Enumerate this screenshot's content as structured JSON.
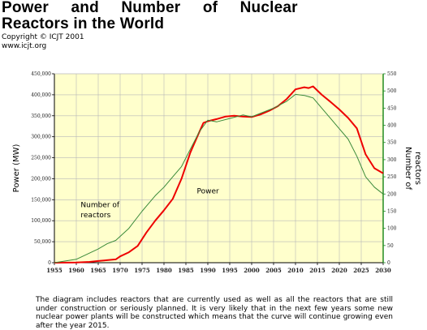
{
  "header": {
    "title_line1": "Power and Number of Nuclear",
    "title_line2": "Reactors in the World",
    "copyright": "Copyright © ICJT 2001",
    "website": "www.icjt.org"
  },
  "caption": "The diagram includes reactors that are currently used as well as all the reactors that are still under construction or seriously planned. It is very likely that in the next few years some new nuclear power plants will be constructed which means that the curve will continue growing even after the year 2015.",
  "colors": {
    "plot_background": "#ffffcc",
    "power_line": "#ee0000",
    "reactors_line": "#3a8a3a",
    "grid": "#b8b8b8",
    "left_axis": "#000000",
    "right_axis": "#228b22"
  },
  "chart_data": {
    "type": "line",
    "title": "Power and Number of Nuclear Reactors in the World",
    "xlabel": "",
    "ylabel": "Power (MW)",
    "y2label": "Number of reactors",
    "xlim": [
      1955,
      2030
    ],
    "ylim": [
      0,
      450000
    ],
    "y2lim": [
      0,
      550
    ],
    "x_ticks": [
      "1955",
      "1960",
      "1965",
      "1970",
      "1975",
      "1980",
      "1985",
      "1990",
      "1995",
      "2000",
      "2005",
      "2010",
      "2015",
      "2020",
      "2025",
      "2030"
    ],
    "y_ticks": [
      "0",
      "50,000",
      "100,000",
      "150,000",
      "200,000",
      "250,000",
      "300,000",
      "350,000",
      "400,000",
      "450,000"
    ],
    "y2_ticks": [
      "0",
      "50",
      "100",
      "150",
      "200",
      "250",
      "300",
      "350",
      "400",
      "450",
      "500",
      "550"
    ],
    "grid": true,
    "annotations": [
      {
        "text": "Power",
        "x": 1987.5,
        "y": 165000
      },
      {
        "text": "Number of",
        "x": 1961,
        "y": 132000
      },
      {
        "text": "reactors",
        "x": 1961,
        "y": 108000
      }
    ],
    "series": [
      {
        "name": "Power",
        "axis": "left",
        "x": [
          1955,
          1960,
          1963,
          1965,
          1967,
          1969,
          1970,
          1972,
          1974,
          1976,
          1978,
          1980,
          1982,
          1984,
          1986,
          1988,
          1989,
          1990,
          1992,
          1994,
          1996,
          1998,
          2000,
          2002,
          2004,
          2006,
          2008,
          2010,
          2012,
          2013,
          2014,
          2016,
          2018,
          2020,
          2022,
          2024,
          2026,
          2028,
          2030
        ],
        "values": [
          0,
          500,
          2000,
          4000,
          6000,
          8000,
          15000,
          25000,
          40000,
          72000,
          100000,
          125000,
          152000,
          200000,
          262000,
          310000,
          333000,
          337000,
          342000,
          348000,
          350000,
          348000,
          347000,
          353000,
          362000,
          373000,
          390000,
          413000,
          418000,
          416000,
          420000,
          400000,
          383000,
          365000,
          345000,
          320000,
          258000,
          225000,
          213000
        ]
      },
      {
        "name": "Number of reactors",
        "axis": "right",
        "x": [
          1955,
          1960,
          1965,
          1967,
          1969,
          1972,
          1975,
          1978,
          1980,
          1982,
          1984,
          1986,
          1988,
          1990,
          1992,
          1995,
          1998,
          2000,
          2003,
          2005,
          2008,
          2010,
          2012,
          2014,
          2016,
          2018,
          2020,
          2022,
          2024,
          2026,
          2028,
          2030
        ],
        "values": [
          0,
          10,
          40,
          55,
          65,
          100,
          150,
          195,
          220,
          250,
          280,
          330,
          380,
          415,
          410,
          420,
          430,
          425,
          440,
          450,
          470,
          490,
          487,
          480,
          450,
          420,
          390,
          360,
          310,
          250,
          220,
          200
        ]
      }
    ]
  }
}
